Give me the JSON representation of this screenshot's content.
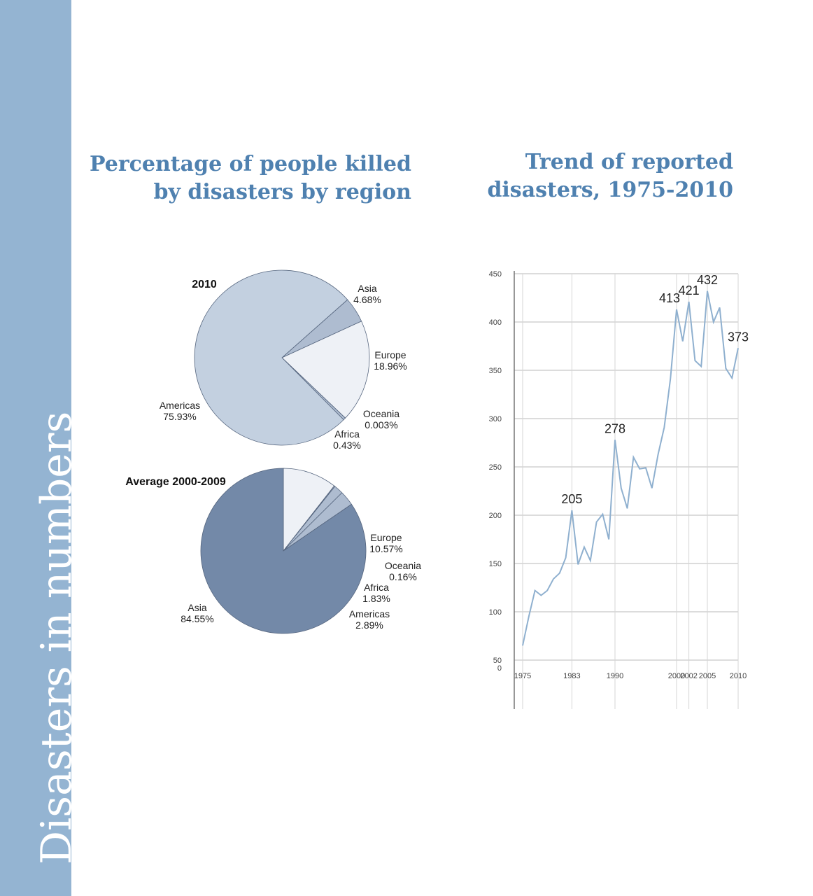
{
  "sidebar": {
    "title": "Disasters in numbers"
  },
  "headings": {
    "pie_line1": "Percentage of people killed",
    "pie_line2": "by disasters by region",
    "line_line1": "Trend of reported",
    "line_line2": "disasters, 1975-2010"
  },
  "colors": {
    "sidebar": "#94b4d2",
    "heading": "#4f81b0",
    "americas_2010": "#c3d0e0",
    "asia_avg": "#7389a8",
    "europe": "#eef1f6",
    "small_slices": "#aebcd0",
    "line": "#8fb0cf"
  },
  "chart_data": [
    {
      "type": "pie",
      "title": "2010",
      "slices": [
        {
          "label": "Asia",
          "value": 4.68,
          "value_label": "4.68%"
        },
        {
          "label": "Europe",
          "value": 18.96,
          "value_label": "18.96%"
        },
        {
          "label": "Oceania",
          "value": 0.003,
          "value_label": "0.003%"
        },
        {
          "label": "Africa",
          "value": 0.43,
          "value_label": "0.43%"
        },
        {
          "label": "Americas",
          "value": 75.93,
          "value_label": "75.93%"
        }
      ]
    },
    {
      "type": "pie",
      "title": "Average 2000-2009",
      "slices": [
        {
          "label": "Europe",
          "value": 10.57,
          "value_label": "10.57%"
        },
        {
          "label": "Oceania",
          "value": 0.16,
          "value_label": "0.16%"
        },
        {
          "label": "Africa",
          "value": 1.83,
          "value_label": "1.83%"
        },
        {
          "label": "Americas",
          "value": 2.89,
          "value_label": "2.89%"
        },
        {
          "label": "Asia",
          "value": 84.55,
          "value_label": "84.55%"
        }
      ]
    },
    {
      "type": "line",
      "x": [
        1975,
        1976,
        1977,
        1978,
        1979,
        1980,
        1981,
        1982,
        1983,
        1984,
        1985,
        1986,
        1987,
        1988,
        1989,
        1990,
        1991,
        1992,
        1993,
        1994,
        1995,
        1996,
        1997,
        1998,
        1999,
        2000,
        2001,
        2002,
        2003,
        2004,
        2005,
        2006,
        2007,
        2008,
        2009,
        2010
      ],
      "y": [
        65,
        95,
        122,
        117,
        122,
        134,
        140,
        156,
        205,
        149,
        167,
        153,
        193,
        201,
        175,
        278,
        228,
        207,
        260,
        248,
        249,
        228,
        263,
        291,
        341,
        413,
        380,
        421,
        360,
        354,
        432,
        400,
        415,
        352,
        342,
        373
      ],
      "data_labels": [
        {
          "x": 1983,
          "y": 205,
          "text": "205"
        },
        {
          "x": 1990,
          "y": 278,
          "text": "278"
        },
        {
          "x": 2000,
          "y": 413,
          "text": "413"
        },
        {
          "x": 2002,
          "y": 421,
          "text": "421"
        },
        {
          "x": 2005,
          "y": 432,
          "text": "432"
        },
        {
          "x": 2010,
          "y": 373,
          "text": "373"
        }
      ],
      "x_ticks": [
        "1975",
        "1983",
        "1990",
        "2000",
        "2002",
        "2005",
        "2010"
      ],
      "y_ticks": [
        "0",
        "50",
        "100",
        "150",
        "200",
        "250",
        "300",
        "350",
        "400",
        "450"
      ],
      "ylim": [
        50,
        450
      ],
      "grid": true
    }
  ]
}
